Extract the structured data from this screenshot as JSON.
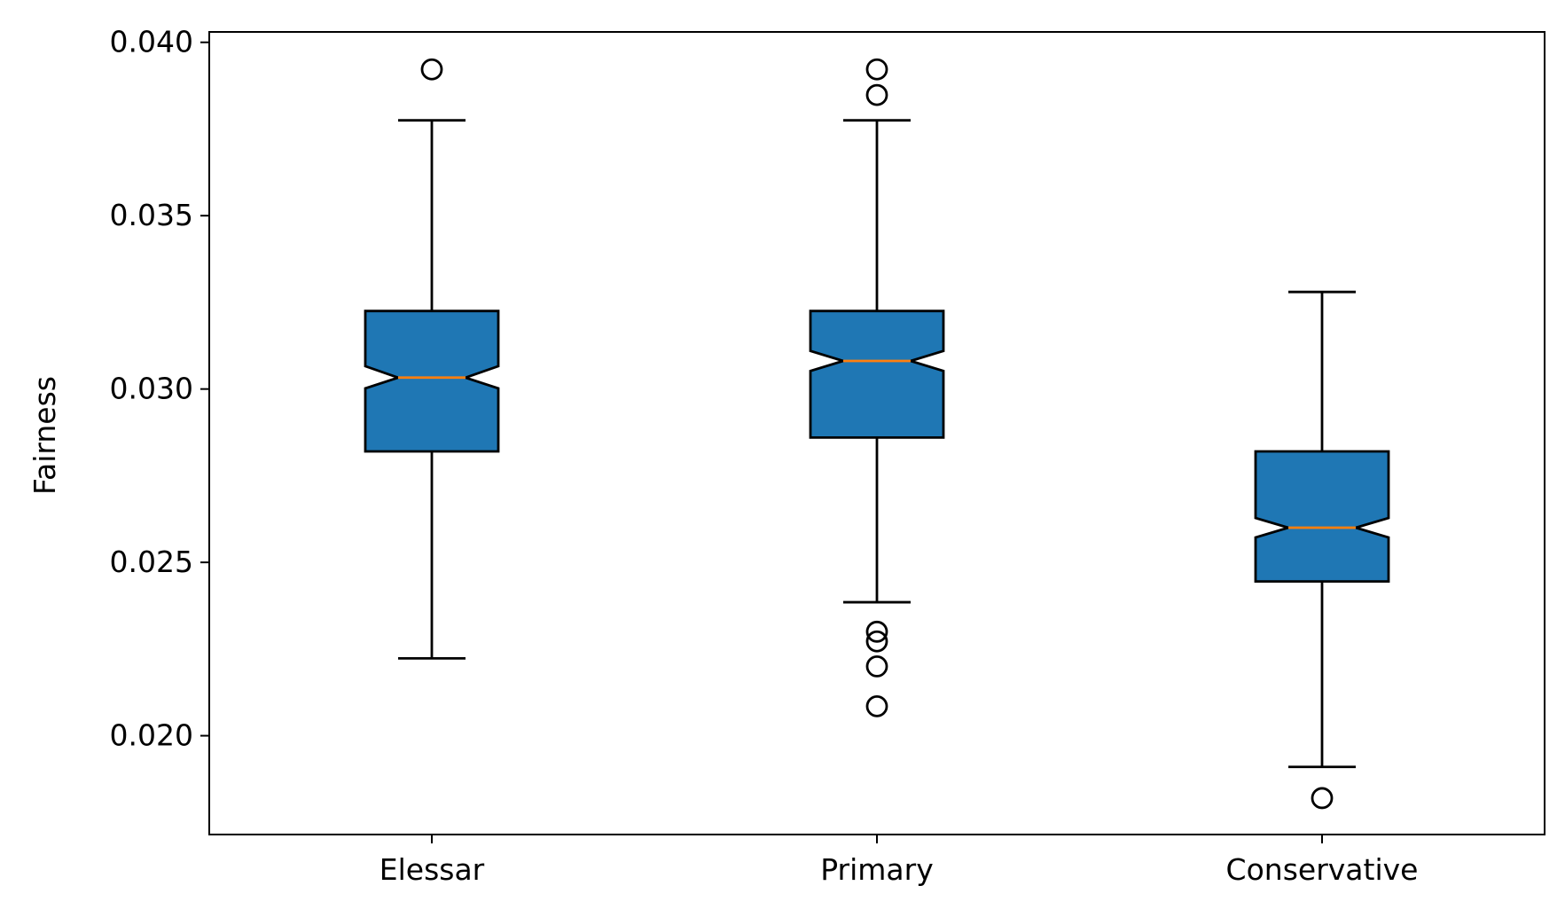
{
  "chart_data": {
    "type": "boxplot",
    "title": "",
    "xlabel": "",
    "ylabel": "Fairness",
    "ylim": [
      0.01715,
      0.0403
    ],
    "yticks": [
      0.02,
      0.025,
      0.03,
      0.035,
      0.04
    ],
    "ytick_labels": [
      "0.020",
      "0.025",
      "0.030",
      "0.035",
      "0.040"
    ],
    "notched": true,
    "categories": [
      "Elessar",
      "Primary",
      "Conservative"
    ],
    "boxes": [
      {
        "name": "Elessar",
        "q1": 0.0282,
        "median": 0.03033,
        "q3": 0.03225,
        "notch_low": 0.03002,
        "notch_high": 0.03066,
        "whisker_low": 0.02223,
        "whisker_high": 0.03775,
        "outliers": [
          0.03922
        ]
      },
      {
        "name": "Primary",
        "q1": 0.0286,
        "median": 0.03081,
        "q3": 0.03225,
        "notch_low": 0.03052,
        "notch_high": 0.0311,
        "whisker_low": 0.02385,
        "whisker_high": 0.03775,
        "outliers": [
          0.03922,
          0.03848,
          0.023,
          0.02272,
          0.022,
          0.02085
        ]
      },
      {
        "name": "Conservative",
        "q1": 0.02445,
        "median": 0.026,
        "q3": 0.0282,
        "notch_low": 0.02572,
        "notch_high": 0.02628,
        "whisker_low": 0.0191,
        "whisker_high": 0.0328,
        "outliers": [
          0.0182
        ]
      }
    ],
    "colors": {
      "box_fill": "#1f77b4",
      "median": "#ff7f0e",
      "edge": "#000000"
    }
  }
}
